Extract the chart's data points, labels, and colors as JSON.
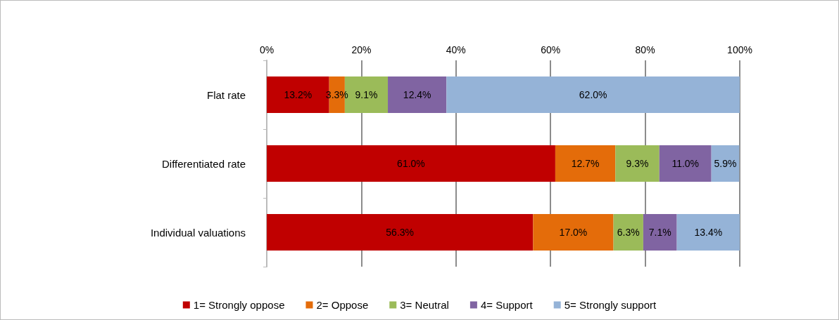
{
  "chart_data": {
    "type": "bar",
    "orientation": "horizontal",
    "stacked": true,
    "categories": [
      "Flat rate",
      "Differentiated rate",
      "Individual valuations"
    ],
    "series": [
      {
        "name": "1= Strongly oppose",
        "color": "#c00000",
        "values": [
          13.2,
          61.0,
          56.3
        ],
        "value_labels": [
          "13.2%",
          "61.0%",
          "56.3%"
        ]
      },
      {
        "name": "2= Oppose",
        "color": "#e46c0a",
        "values": [
          3.3,
          12.7,
          17.0
        ],
        "value_labels": [
          "3.3%",
          "12.7%",
          "17.0%"
        ]
      },
      {
        "name": "3= Neutral",
        "color": "#9bbb59",
        "values": [
          9.1,
          9.3,
          6.3
        ],
        "value_labels": [
          "9.1%",
          "9.3%",
          "6.3%"
        ]
      },
      {
        "name": "4= Support",
        "color": "#8064a2",
        "values": [
          12.4,
          11.0,
          7.1
        ],
        "value_labels": [
          "12.4%",
          "11.0%",
          "7.1%"
        ]
      },
      {
        "name": "5= Strongly support",
        "color": "#95b3d7",
        "values": [
          62.0,
          5.9,
          13.4
        ],
        "value_labels": [
          "62.0%",
          "5.9%",
          "13.4%"
        ]
      }
    ],
    "xlim": [
      0,
      100
    ],
    "xticks": [
      {
        "value": 0,
        "label": "0%"
      },
      {
        "value": 20,
        "label": "20%"
      },
      {
        "value": 40,
        "label": "40%"
      },
      {
        "value": 60,
        "label": "60%"
      },
      {
        "value": 80,
        "label": "80%"
      },
      {
        "value": 100,
        "label": "100%"
      }
    ],
    "grid": "x",
    "legend": "bottom"
  }
}
